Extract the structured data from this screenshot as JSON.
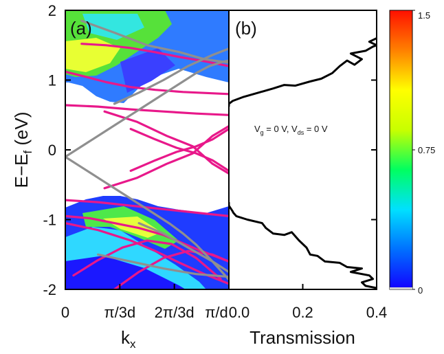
{
  "chart_data": [
    {
      "panel": "(a)",
      "type": "line",
      "xlabel": "k",
      "xlabel_sub": "x",
      "ylabel": "E−E",
      "ylabel_sub": "f",
      "ylabel_unit": " (eV)",
      "xlim": [
        0,
        1
      ],
      "ylim": [
        -2,
        2
      ],
      "x_ticks": [
        {
          "value": 0,
          "label": "0"
        },
        {
          "value": 0.3333,
          "label": "π/3d"
        },
        {
          "value": 0.6667,
          "label": "2π/3d"
        },
        {
          "value": 1,
          "label": "π/d"
        }
      ],
      "y_ticks": [
        {
          "value": 2,
          "label": "2"
        },
        {
          "value": 1,
          "label": "1"
        },
        {
          "value": 0,
          "label": "0"
        },
        {
          "value": -1,
          "label": "-1"
        },
        {
          "value": -2,
          "label": "-2"
        }
      ],
      "colors": {
        "magenta_bands": "#e8188a",
        "gray_bands": "#8f8f8f"
      },
      "series": [
        {
          "color": "magenta_bands",
          "x": [
            0,
            0.2,
            0.4,
            0.6,
            0.8,
            1
          ],
          "y": [
            0.64,
            0.62,
            0.58,
            0.55,
            0.52,
            0.5
          ]
        },
        {
          "color": "magenta_bands",
          "x": [
            0.24,
            0.44,
            0.62,
            0.78,
            0.9,
            1
          ],
          "y": [
            0.55,
            0.4,
            0.2,
            0.05,
            -0.2,
            -0.34
          ]
        },
        {
          "color": "magenta_bands",
          "x": [
            0.24,
            0.44,
            0.62,
            0.78,
            0.9,
            1
          ],
          "y": [
            -0.55,
            -0.4,
            -0.2,
            -0.05,
            0.2,
            0.34
          ]
        },
        {
          "color": "magenta_bands",
          "x": [
            0.4,
            0.55,
            0.68,
            0.8,
            0.9,
            1
          ],
          "y": [
            0.3,
            0.15,
            0.03,
            -0.05,
            -0.15,
            -0.3
          ]
        },
        {
          "color": "magenta_bands",
          "x": [
            0.4,
            0.55,
            0.68,
            0.8,
            0.9,
            1
          ],
          "y": [
            -0.3,
            -0.15,
            -0.03,
            0.05,
            0.15,
            0.3
          ]
        },
        {
          "color": "magenta_bands",
          "x": [
            0.1,
            0.25,
            0.4,
            0.55,
            0.7,
            0.85,
            1
          ],
          "y": [
            1.52,
            1.5,
            1.46,
            1.4,
            1.33,
            1.27,
            1.2
          ]
        },
        {
          "color": "magenta_bands",
          "x": [
            0,
            0.12,
            0.25,
            0.4,
            0.55,
            0.72,
            1
          ],
          "y": [
            1.12,
            1.05,
            0.97,
            0.9,
            0.86,
            0.83,
            0.8
          ]
        },
        {
          "color": "magenta_bands",
          "x": [
            0,
            0.2,
            0.4,
            0.6,
            0.8,
            1
          ],
          "y": [
            -0.72,
            -0.75,
            -0.8,
            -0.85,
            -0.9,
            -0.95
          ]
        },
        {
          "color": "magenta_bands",
          "x": [
            0,
            0.15,
            0.3,
            0.45,
            0.6,
            0.8,
            1
          ],
          "y": [
            -0.95,
            -0.98,
            -1.05,
            -1.12,
            -1.22,
            -1.42,
            -1.6
          ]
        },
        {
          "color": "magenta_bands",
          "x": [
            0,
            0.2,
            0.4,
            0.55,
            0.7,
            0.85,
            1
          ],
          "y": [
            -1.05,
            -1.15,
            -1.3,
            -1.45,
            -1.62,
            -1.78,
            -1.92
          ]
        },
        {
          "color": "magenta_bands",
          "x": [
            0.05,
            0.2,
            0.35,
            0.5,
            0.65,
            0.8,
            0.95
          ],
          "y": [
            -1.8,
            -1.58,
            -1.4,
            -1.3,
            -1.35,
            -1.55,
            -1.85
          ]
        },
        {
          "color": "magenta_bands",
          "x": [
            0.3,
            0.45,
            0.6,
            0.75,
            0.9,
            1
          ],
          "y": [
            -2,
            -1.75,
            -1.55,
            -1.45,
            -1.5,
            -1.6
          ]
        },
        {
          "color": "gray_bands",
          "x": [
            0,
            0.08,
            0.16,
            0.24,
            0.32,
            0.4,
            0.48,
            0.56,
            0.64,
            0.72,
            0.8,
            0.88,
            0.96,
            1
          ],
          "y": [
            -0.1,
            0.02,
            0.14,
            0.26,
            0.38,
            0.5,
            0.62,
            0.74,
            0.86,
            0.98,
            1.1,
            1.2,
            1.26,
            1.28
          ]
        },
        {
          "color": "gray_bands",
          "x": [
            0,
            0.08,
            0.16,
            0.24,
            0.32,
            0.4,
            0.48,
            0.56,
            0.64,
            0.72,
            0.8,
            0.9,
            1
          ],
          "y": [
            -0.1,
            -0.22,
            -0.34,
            -0.46,
            -0.58,
            -0.7,
            -0.82,
            -0.94,
            -1.06,
            -1.2,
            -1.36,
            -1.6,
            -1.86
          ]
        },
        {
          "color": "gray_bands",
          "x": [
            0.3,
            0.45,
            0.6,
            0.75,
            0.9,
            1
          ],
          "y": [
            0.66,
            0.82,
            1.0,
            1.2,
            1.36,
            1.45
          ]
        },
        {
          "color": "gray_bands",
          "x": [
            0.1,
            0.3,
            0.5,
            0.7,
            0.85,
            1
          ],
          "y": [
            1.85,
            1.68,
            1.5,
            1.4,
            1.3,
            1.25
          ]
        },
        {
          "color": "gray_bands",
          "x": [
            0.45,
            0.6,
            0.75,
            0.9,
            1
          ],
          "y": [
            -1.05,
            -1.2,
            -1.4,
            -1.6,
            -1.75
          ]
        },
        {
          "color": "gray_bands",
          "x": [
            0.2,
            0.4,
            0.6,
            0.8,
            1
          ],
          "y": [
            -1.5,
            -1.6,
            -1.7,
            -1.78,
            -1.82
          ]
        }
      ]
    },
    {
      "panel": "(b)",
      "type": "line",
      "xlabel": "Transmission",
      "xlim": [
        0,
        0.4
      ],
      "ylim": [
        -2,
        2
      ],
      "x_ticks": [
        {
          "value": 0,
          "label": "0.0"
        },
        {
          "value": 0.2,
          "label": "0.2"
        },
        {
          "value": 0.4,
          "label": "0.4"
        }
      ],
      "annotation": {
        "v_g": "V",
        "v_g_sub": "g",
        "v_g_rest": " = 0 V, V",
        "v_ds_sub": "ds",
        "v_ds_rest": " = 0 V"
      },
      "series": [
        {
          "x": [
            0,
            0,
            0.01,
            0.012,
            0.02,
            0.05,
            0.09,
            0.1,
            0.12,
            0.15,
            0.17,
            0.19,
            0.21,
            0.22,
            0.24,
            0.26,
            0.3,
            0.32,
            0.36,
            0.33,
            0.38,
            0.39,
            0.36,
            0.37,
            0.4,
            0.4
          ],
          "y": [
            -0.75,
            -0.8,
            -0.88,
            -0.9,
            -0.95,
            -1.0,
            -1.05,
            -1.12,
            -1.2,
            -1.22,
            -1.18,
            -1.3,
            -1.4,
            -1.5,
            -1.52,
            -1.6,
            -1.62,
            -1.68,
            -1.7,
            -1.75,
            -1.8,
            -1.85,
            -1.9,
            -1.95,
            -1.98,
            -2.0
          ]
        },
        {
          "x": [
            0,
            0,
            0.01,
            0.04,
            0.08,
            0.12,
            0.15,
            0.18,
            0.22,
            0.25,
            0.28,
            0.3,
            0.32,
            0.34,
            0.36,
            0.33,
            0.37,
            0.39,
            0.4,
            0.38,
            0.4
          ],
          "y": [
            0.62,
            0.66,
            0.7,
            0.76,
            0.82,
            0.88,
            0.93,
            0.92,
            0.98,
            1.02,
            1.1,
            1.2,
            1.28,
            1.22,
            1.3,
            1.38,
            1.42,
            1.48,
            1.5,
            1.55,
            1.6
          ]
        }
      ]
    }
  ],
  "colorbar": {
    "ticks": [
      {
        "value": 1.5,
        "label": "1.5"
      },
      {
        "value": 0.75,
        "label": "0.75"
      },
      {
        "value": 0,
        "label": "0"
      }
    ],
    "range": [
      0,
      1.5
    ],
    "colors": [
      "#1200ff",
      "#0070ff",
      "#00e0ff",
      "#00ff60",
      "#c8ff00",
      "#ffff00",
      "#ff8000",
      "#ff1000"
    ]
  }
}
